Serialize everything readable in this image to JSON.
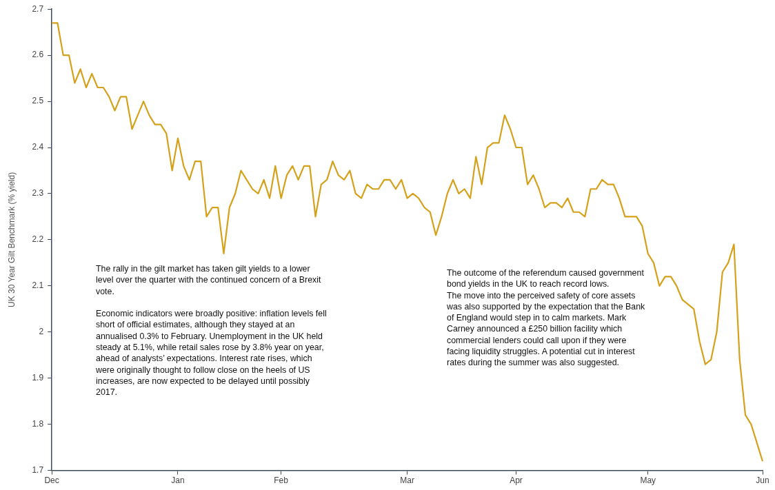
{
  "chart_data": {
    "type": "line",
    "ylabel": "UK 30 Year Gilt Benchmark (% yield)",
    "color": "#d6a11a",
    "marker": "none",
    "line_style": "solid",
    "ylim": [
      1.7,
      2.7
    ],
    "yticks": [
      1.7,
      1.8,
      1.9,
      2,
      2.1,
      2.2,
      2.3,
      2.4,
      2.5,
      2.6,
      2.7
    ],
    "categories": [
      "Dec",
      null,
      null,
      null,
      null,
      null,
      null,
      null,
      null,
      null,
      null,
      null,
      null,
      null,
      null,
      null,
      null,
      null,
      null,
      null,
      null,
      null,
      "Jan",
      null,
      null,
      null,
      null,
      null,
      null,
      null,
      null,
      null,
      null,
      null,
      null,
      null,
      null,
      null,
      null,
      null,
      "Feb",
      null,
      null,
      null,
      null,
      null,
      null,
      null,
      null,
      null,
      null,
      null,
      null,
      null,
      null,
      null,
      null,
      null,
      null,
      null,
      null,
      null,
      "Mar",
      null,
      null,
      null,
      null,
      null,
      null,
      null,
      null,
      null,
      null,
      null,
      null,
      null,
      null,
      null,
      null,
      null,
      null,
      "Apr",
      null,
      null,
      null,
      null,
      null,
      null,
      null,
      null,
      null,
      null,
      null,
      null,
      null,
      null,
      null,
      null,
      null,
      null,
      null,
      null,
      null,
      null,
      "May",
      null,
      null,
      null,
      null,
      null,
      null,
      null,
      null,
      null,
      null,
      null,
      null,
      null,
      null,
      null,
      null,
      null,
      null,
      null,
      "Jun"
    ],
    "values": [
      2.67,
      2.67,
      2.6,
      2.6,
      2.54,
      2.57,
      2.53,
      2.56,
      2.53,
      2.53,
      2.51,
      2.48,
      2.51,
      2.51,
      2.44,
      2.47,
      2.5,
      2.47,
      2.45,
      2.45,
      2.43,
      2.35,
      2.42,
      2.36,
      2.33,
      2.37,
      2.37,
      2.25,
      2.27,
      2.27,
      2.17,
      2.27,
      2.3,
      2.35,
      2.33,
      2.31,
      2.3,
      2.33,
      2.29,
      2.36,
      2.29,
      2.34,
      2.36,
      2.33,
      2.36,
      2.36,
      2.25,
      2.32,
      2.33,
      2.37,
      2.34,
      2.33,
      2.35,
      2.3,
      2.29,
      2.32,
      2.31,
      2.31,
      2.33,
      2.33,
      2.31,
      2.33,
      2.29,
      2.3,
      2.29,
      2.27,
      2.26,
      2.21,
      2.25,
      2.3,
      2.33,
      2.3,
      2.31,
      2.29,
      2.38,
      2.32,
      2.4,
      2.41,
      2.41,
      2.47,
      2.44,
      2.4,
      2.4,
      2.32,
      2.34,
      2.31,
      2.27,
      2.28,
      2.28,
      2.27,
      2.29,
      2.26,
      2.26,
      2.25,
      2.31,
      2.31,
      2.33,
      2.32,
      2.32,
      2.29,
      2.25,
      2.25,
      2.25,
      2.23,
      2.17,
      2.15,
      2.1,
      2.12,
      2.12,
      2.1,
      2.07,
      2.06,
      2.05,
      1.98,
      1.93,
      1.94,
      2,
      2.13,
      2.15,
      2.19,
      1.94,
      1.82,
      1.8,
      1.76,
      1.72
    ],
    "annotations": [
      "The rally in the gilt market has taken gilt yields to a lower level over the quarter with the continued concern of a Brexit vote.\n\nEconomic indicators were broadly positive: inflation levels fell short of official estimates, although they stayed at an annualised 0.3% to February. Unemployment in the UK held steady at 5.1%, while retail sales rose by 3.8% year on year, ahead of analysts’ expectations. Interest rate rises, which were originally thought to follow close on the heels of US increases, are now expected to be delayed until possibly 2017.",
      "The outcome of the referendum caused government bond yields in the UK to reach record lows.\nThe move into the perceived safety of core assets was also supported by the expectation that the Bank of England would step in to calm markets. Mark Carney announced a £250 billion facility which commercial lenders could call upon if they were facing liquidity struggles. A potential cut in interest rates during the summer was also suggested."
    ]
  }
}
